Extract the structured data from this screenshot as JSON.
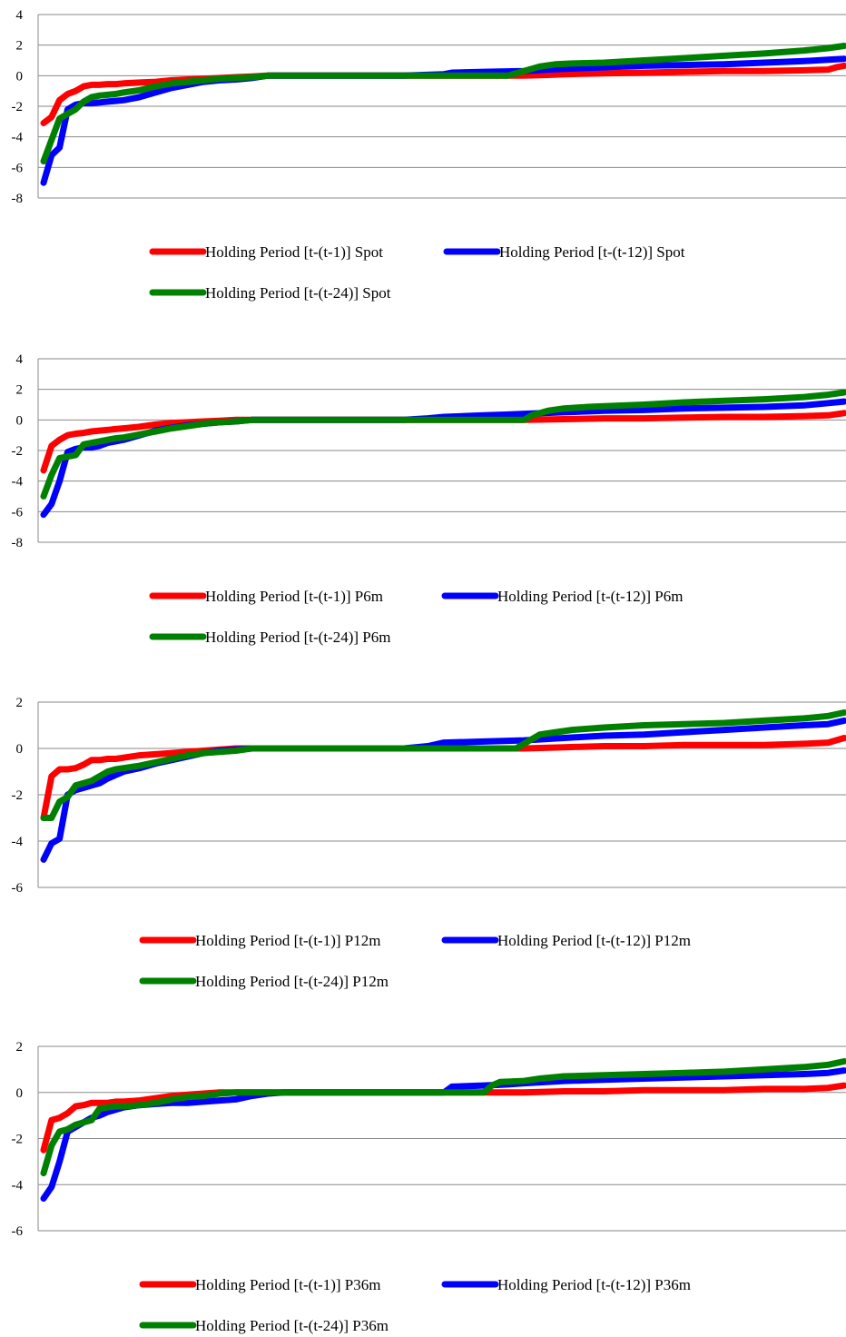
{
  "chart_data": [
    {
      "type": "line",
      "title": "",
      "xlabel": "",
      "ylabel": "",
      "ylim": [
        -8,
        4
      ],
      "yticks": [
        4,
        2,
        0,
        -2,
        -4,
        -6,
        -8
      ],
      "grid": true,
      "legend_position": "bottom",
      "series": [
        {
          "name": "Holding Period [t-(t-1)] Spot",
          "color": "#ff0000",
          "x": [
            0,
            1,
            2,
            3,
            4,
            5,
            6,
            7,
            8,
            9,
            10,
            12,
            14,
            16,
            18,
            20,
            22,
            24,
            26,
            28,
            30,
            35,
            40,
            45,
            50,
            55,
            60,
            63,
            65,
            70,
            75,
            80,
            85,
            90,
            95,
            98,
            99,
            100
          ],
          "y": [
            -3.1,
            -2.7,
            -1.6,
            -1.2,
            -1.0,
            -0.7,
            -0.6,
            -0.6,
            -0.55,
            -0.55,
            -0.5,
            -0.45,
            -0.4,
            -0.3,
            -0.25,
            -0.2,
            -0.15,
            -0.1,
            -0.05,
            0,
            0,
            0,
            0,
            0,
            0,
            0,
            0,
            0.05,
            0.1,
            0.15,
            0.2,
            0.25,
            0.3,
            0.3,
            0.35,
            0.4,
            0.55,
            0.65
          ]
        },
        {
          "name": "Holding Period [t-(t-12)] Spot",
          "color": "#0000ff",
          "x": [
            0,
            1,
            2,
            3,
            4,
            5,
            6,
            7,
            8,
            9,
            10,
            12,
            14,
            16,
            18,
            20,
            22,
            24,
            26,
            28,
            30,
            35,
            40,
            45,
            50,
            51,
            55,
            60,
            63,
            65,
            70,
            75,
            80,
            85,
            90,
            95,
            98,
            100
          ],
          "y": [
            -7.0,
            -5.2,
            -4.7,
            -2.2,
            -1.9,
            -1.8,
            -1.8,
            -1.75,
            -1.7,
            -1.65,
            -1.6,
            -1.4,
            -1.1,
            -0.8,
            -0.6,
            -0.4,
            -0.3,
            -0.25,
            -0.15,
            0,
            0,
            0,
            0,
            0,
            0.1,
            0.2,
            0.25,
            0.3,
            0.4,
            0.45,
            0.55,
            0.65,
            0.7,
            0.75,
            0.85,
            0.95,
            1.05,
            1.1
          ]
        },
        {
          "name": "Holding Period [t-(t-24)] Spot",
          "color": "#008000",
          "x": [
            0,
            1,
            2,
            3,
            4,
            5,
            6,
            7,
            8,
            9,
            10,
            12,
            14,
            16,
            18,
            20,
            22,
            24,
            26,
            28,
            30,
            35,
            40,
            45,
            50,
            55,
            58,
            60,
            62,
            64,
            66,
            70,
            75,
            80,
            85,
            90,
            95,
            98,
            100
          ],
          "y": [
            -5.6,
            -4.2,
            -2.8,
            -2.5,
            -2.2,
            -1.7,
            -1.4,
            -1.3,
            -1.25,
            -1.2,
            -1.1,
            -0.95,
            -0.7,
            -0.5,
            -0.4,
            -0.3,
            -0.2,
            -0.15,
            -0.1,
            0,
            0,
            0,
            0,
            0,
            0,
            0,
            0,
            0.3,
            0.6,
            0.75,
            0.8,
            0.85,
            1.0,
            1.15,
            1.3,
            1.45,
            1.65,
            1.8,
            1.95
          ]
        }
      ]
    },
    {
      "type": "line",
      "title": "",
      "xlabel": "",
      "ylabel": "",
      "ylim": [
        -8,
        4
      ],
      "yticks": [
        4,
        2,
        0,
        -2,
        -4,
        -6,
        -8
      ],
      "grid": true,
      "legend_position": "bottom",
      "series": [
        {
          "name": "Holding Period [t-(t-1)] P6m",
          "color": "#ff0000",
          "x": [
            0,
            1,
            2,
            3,
            4,
            5,
            6,
            7,
            8,
            9,
            10,
            12,
            14,
            16,
            18,
            20,
            22,
            24,
            26,
            28,
            30,
            35,
            40,
            45,
            50,
            55,
            60,
            65,
            70,
            75,
            80,
            85,
            90,
            95,
            98,
            100
          ],
          "y": [
            -3.3,
            -1.7,
            -1.3,
            -1.0,
            -0.9,
            -0.85,
            -0.75,
            -0.7,
            -0.65,
            -0.6,
            -0.55,
            -0.45,
            -0.3,
            -0.2,
            -0.15,
            -0.1,
            -0.05,
            0,
            0,
            0,
            0,
            0,
            0,
            0,
            0,
            0,
            0,
            0.05,
            0.1,
            0.1,
            0.15,
            0.2,
            0.2,
            0.25,
            0.3,
            0.45
          ]
        },
        {
          "name": "Holding Period [t-(t-12)] P6m",
          "color": "#0000ff",
          "x": [
            0,
            1,
            2,
            3,
            4,
            5,
            6,
            7,
            8,
            9,
            10,
            12,
            14,
            16,
            18,
            20,
            22,
            24,
            26,
            28,
            30,
            35,
            40,
            45,
            48,
            50,
            55,
            58,
            60,
            65,
            70,
            75,
            80,
            85,
            90,
            95,
            98,
            100
          ],
          "y": [
            -6.2,
            -5.5,
            -4.0,
            -2.1,
            -1.9,
            -1.8,
            -1.8,
            -1.7,
            -1.5,
            -1.4,
            -1.3,
            -1.0,
            -0.7,
            -0.5,
            -0.35,
            -0.25,
            -0.15,
            -0.1,
            0,
            0,
            0,
            0,
            0,
            0,
            0.1,
            0.2,
            0.3,
            0.35,
            0.4,
            0.5,
            0.6,
            0.65,
            0.75,
            0.8,
            0.85,
            0.95,
            1.1,
            1.2
          ]
        },
        {
          "name": "Holding Period [t-(t-24)] P6m",
          "color": "#008000",
          "x": [
            0,
            1,
            2,
            3,
            4,
            5,
            6,
            7,
            8,
            9,
            10,
            12,
            14,
            16,
            18,
            20,
            22,
            24,
            26,
            28,
            30,
            35,
            40,
            45,
            50,
            55,
            60,
            61,
            63,
            65,
            68,
            70,
            75,
            80,
            85,
            90,
            95,
            98,
            100
          ],
          "y": [
            -5.0,
            -3.6,
            -2.5,
            -2.4,
            -2.3,
            -1.6,
            -1.5,
            -1.4,
            -1.3,
            -1.2,
            -1.15,
            -0.95,
            -0.75,
            -0.55,
            -0.4,
            -0.25,
            -0.15,
            -0.1,
            0,
            0,
            0,
            0,
            0,
            0,
            0,
            0,
            0,
            0.3,
            0.6,
            0.75,
            0.85,
            0.9,
            1.0,
            1.15,
            1.25,
            1.35,
            1.5,
            1.65,
            1.8
          ]
        }
      ]
    },
    {
      "type": "line",
      "title": "",
      "xlabel": "",
      "ylabel": "",
      "ylim": [
        -6,
        2
      ],
      "yticks": [
        2,
        0,
        -2,
        -4,
        -6
      ],
      "grid": true,
      "legend_position": "bottom",
      "series": [
        {
          "name": "Holding Period [t-(t-1)] P12m",
          "color": "#ff0000",
          "x": [
            0,
            1,
            2,
            3,
            4,
            5,
            6,
            7,
            8,
            9,
            10,
            12,
            14,
            16,
            18,
            20,
            22,
            24,
            26,
            28,
            30,
            35,
            40,
            45,
            50,
            55,
            60,
            65,
            70,
            75,
            80,
            85,
            90,
            95,
            98,
            100
          ],
          "y": [
            -3.0,
            -1.2,
            -0.9,
            -0.9,
            -0.85,
            -0.7,
            -0.5,
            -0.5,
            -0.45,
            -0.45,
            -0.4,
            -0.3,
            -0.25,
            -0.2,
            -0.15,
            -0.1,
            -0.05,
            0,
            0,
            0,
            0,
            0,
            0,
            0,
            0,
            0,
            0,
            0.05,
            0.1,
            0.1,
            0.15,
            0.15,
            0.15,
            0.2,
            0.25,
            0.45
          ]
        },
        {
          "name": "Holding Period [t-(t-12)] P12m",
          "color": "#0000ff",
          "x": [
            0,
            1,
            2,
            3,
            4,
            5,
            6,
            7,
            8,
            9,
            10,
            12,
            14,
            16,
            18,
            20,
            22,
            24,
            26,
            28,
            30,
            35,
            40,
            45,
            48,
            50,
            55,
            60,
            65,
            70,
            75,
            80,
            85,
            90,
            95,
            98,
            100
          ],
          "y": [
            -4.8,
            -4.1,
            -3.9,
            -2.0,
            -1.8,
            -1.7,
            -1.6,
            -1.5,
            -1.3,
            -1.15,
            -1.0,
            -0.85,
            -0.65,
            -0.5,
            -0.35,
            -0.2,
            -0.1,
            -0.05,
            0,
            0,
            0,
            0,
            0,
            0,
            0.1,
            0.25,
            0.3,
            0.35,
            0.45,
            0.55,
            0.6,
            0.7,
            0.8,
            0.9,
            1.0,
            1.05,
            1.2
          ]
        },
        {
          "name": "Holding Period [t-(t-24)] P12m",
          "color": "#008000",
          "x": [
            0,
            1,
            2,
            3,
            4,
            5,
            6,
            7,
            8,
            9,
            10,
            12,
            14,
            16,
            18,
            20,
            22,
            24,
            26,
            28,
            30,
            35,
            40,
            45,
            50,
            55,
            59,
            60,
            62,
            64,
            66,
            70,
            75,
            80,
            85,
            90,
            95,
            98,
            100
          ],
          "y": [
            -3.0,
            -3.0,
            -2.3,
            -2.1,
            -1.6,
            -1.5,
            -1.4,
            -1.2,
            -1.0,
            -0.9,
            -0.85,
            -0.75,
            -0.6,
            -0.45,
            -0.3,
            -0.2,
            -0.15,
            -0.1,
            0,
            0,
            0,
            0,
            0,
            0,
            0,
            0,
            0,
            0.2,
            0.6,
            0.7,
            0.8,
            0.9,
            1.0,
            1.05,
            1.1,
            1.2,
            1.3,
            1.4,
            1.55
          ]
        }
      ]
    },
    {
      "type": "line",
      "title": "",
      "xlabel": "",
      "ylabel": "",
      "ylim": [
        -6,
        2
      ],
      "yticks": [
        2,
        0,
        -2,
        -4,
        -6
      ],
      "grid": true,
      "legend_position": "bottom",
      "series": [
        {
          "name": "Holding Period [t-(t-1)] P36m",
          "color": "#ff0000",
          "x": [
            0,
            1,
            2,
            3,
            4,
            5,
            6,
            7,
            8,
            9,
            10,
            12,
            14,
            16,
            18,
            20,
            22,
            24,
            26,
            28,
            30,
            35,
            40,
            45,
            50,
            55,
            60,
            65,
            70,
            75,
            80,
            85,
            90,
            95,
            98,
            100
          ],
          "y": [
            -2.5,
            -1.2,
            -1.1,
            -0.9,
            -0.6,
            -0.55,
            -0.45,
            -0.45,
            -0.45,
            -0.4,
            -0.4,
            -0.35,
            -0.25,
            -0.15,
            -0.1,
            -0.05,
            0,
            0,
            0,
            0,
            0,
            0,
            0,
            0,
            0,
            0,
            0,
            0.05,
            0.05,
            0.1,
            0.1,
            0.1,
            0.15,
            0.15,
            0.2,
            0.3
          ]
        },
        {
          "name": "Holding Period [t-(t-12)] P36m",
          "color": "#0000ff",
          "x": [
            0,
            1,
            2,
            3,
            4,
            5,
            6,
            7,
            8,
            9,
            10,
            12,
            14,
            16,
            18,
            20,
            22,
            24,
            26,
            28,
            30,
            35,
            40,
            45,
            50,
            51,
            55,
            58,
            60,
            65,
            70,
            75,
            80,
            85,
            90,
            95,
            98,
            100
          ],
          "y": [
            -4.6,
            -4.1,
            -3.0,
            -1.7,
            -1.5,
            -1.3,
            -1.1,
            -1.0,
            -0.85,
            -0.75,
            -0.65,
            -0.55,
            -0.5,
            -0.45,
            -0.45,
            -0.4,
            -0.35,
            -0.3,
            -0.15,
            -0.05,
            0,
            0,
            0,
            0,
            0,
            0.25,
            0.3,
            0.35,
            0.4,
            0.5,
            0.55,
            0.6,
            0.65,
            0.7,
            0.75,
            0.8,
            0.85,
            0.95
          ]
        },
        {
          "name": "Holding Period [t-(t-24)] P36m",
          "color": "#008000",
          "x": [
            0,
            1,
            2,
            3,
            4,
            5,
            6,
            7,
            8,
            9,
            10,
            12,
            14,
            16,
            18,
            20,
            22,
            24,
            26,
            28,
            30,
            35,
            40,
            45,
            50,
            55,
            56,
            57,
            60,
            62,
            65,
            70,
            75,
            80,
            85,
            90,
            95,
            98,
            100
          ],
          "y": [
            -3.5,
            -2.3,
            -1.7,
            -1.6,
            -1.4,
            -1.3,
            -1.2,
            -0.7,
            -0.65,
            -0.6,
            -0.6,
            -0.55,
            -0.45,
            -0.3,
            -0.2,
            -0.15,
            -0.05,
            0,
            0,
            0,
            0,
            0,
            0,
            0,
            0,
            0,
            0.3,
            0.45,
            0.5,
            0.6,
            0.7,
            0.75,
            0.8,
            0.85,
            0.9,
            1.0,
            1.1,
            1.2,
            1.35
          ]
        }
      ]
    }
  ]
}
